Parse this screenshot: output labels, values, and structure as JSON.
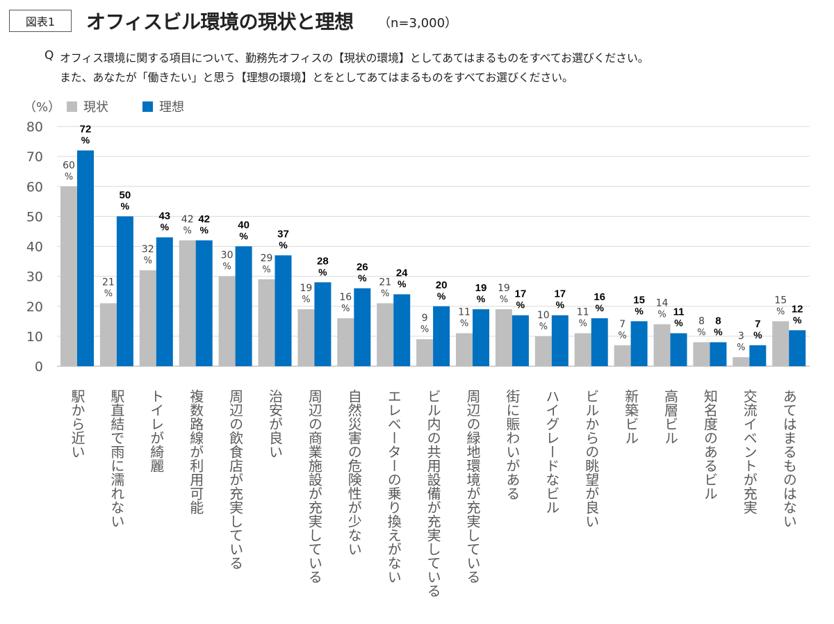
{
  "header": {
    "figure_label": "図表1",
    "title": "オフィスビル環境の現状と理想",
    "sample": "（n=3,000）"
  },
  "question": {
    "mark": "Q",
    "line1": "オフィス環境に関する項目について、勤務先オフィスの【現状の環境】としてあてはまるものをすべてお選びください。",
    "line2": "また、あなたが「働きたい」と思う【理想の環境】とをとしてあてはまるものをすべてお選びください。"
  },
  "chart_data": {
    "type": "bar",
    "ylabel": "（%）",
    "ylim": [
      0,
      80
    ],
    "yticks": [
      0,
      10,
      20,
      30,
      40,
      50,
      60,
      70,
      80
    ],
    "grid": true,
    "legend_position": "top-left",
    "value_suffix": "%",
    "categories": [
      "駅から近い",
      "駅直結で雨に濡れない",
      "トイレが綺麗",
      "複数路線が利用可能",
      "周辺の飲食店が充実している",
      "治安が良い",
      "周辺の商業施設が充実している",
      "自然災害の危険性が少ない",
      "エレベーターの乗り換えがない",
      "ビル内の共用設備が充実している",
      "周辺の緑地環境が充実している",
      "街に賑わいがある",
      "ハイグレードなビル",
      "ビルからの眺望が良い",
      "新築ビル",
      "高層ビル",
      "知名度のあるビル",
      "交流イベントが充実",
      "あてはまるものはない"
    ],
    "series": [
      {
        "name": "現状",
        "color": "#bfbfbf",
        "values": [
          60,
          21,
          32,
          42,
          30,
          29,
          19,
          16,
          21,
          9,
          11,
          19,
          10,
          11,
          7,
          14,
          8,
          3,
          15
        ]
      },
      {
        "name": "理想",
        "color": "#0070c0",
        "values": [
          72,
          50,
          43,
          42,
          40,
          37,
          28,
          26,
          24,
          20,
          19,
          17,
          17,
          16,
          15,
          11,
          8,
          7,
          12
        ]
      }
    ]
  }
}
